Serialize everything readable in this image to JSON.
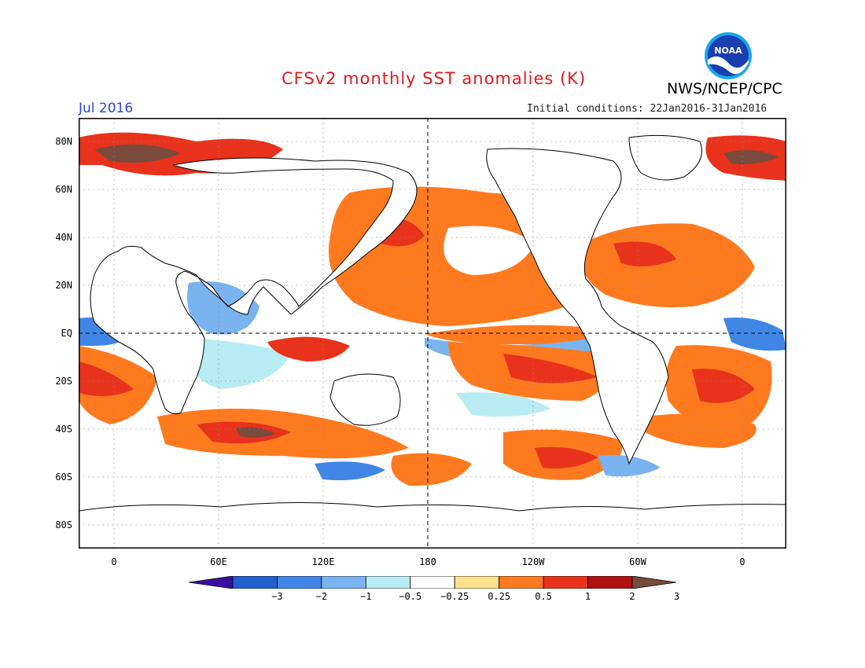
{
  "header": {
    "title": "CFSv2 monthly SST anomalies (K)",
    "org": "NWS/NCEP/CPC",
    "month": "Jul 2016",
    "initial_conditions": "Initial conditions: 22Jan2016-31Jan2016",
    "logo_text": "NOAA"
  },
  "map": {
    "lat_labels": [
      "80N",
      "60N",
      "40N",
      "20N",
      "EQ",
      "20S",
      "40S",
      "60S",
      "80S"
    ],
    "lon_labels": [
      "0",
      "60E",
      "120E",
      "180",
      "120W",
      "60W",
      "0"
    ]
  },
  "colorbar": {
    "labels": [
      "−3",
      "−2",
      "−1",
      "−0.5",
      "−0.25",
      "0.25",
      "0.5",
      "1",
      "2",
      "3"
    ],
    "colors": [
      "#3a0fa0",
      "#1f5fd0",
      "#3f86e6",
      "#7ab4f0",
      "#b8ecf4",
      "#ffffff",
      "#ffe08a",
      "#ff7a1f",
      "#e8321c",
      "#b01010",
      "#7a4a3c"
    ]
  },
  "colors": {
    "title": "#e31a1c",
    "month": "#2b46e0",
    "land": "#ffffff",
    "warm": "#ff7a1f",
    "cool": "#3f86e6"
  }
}
